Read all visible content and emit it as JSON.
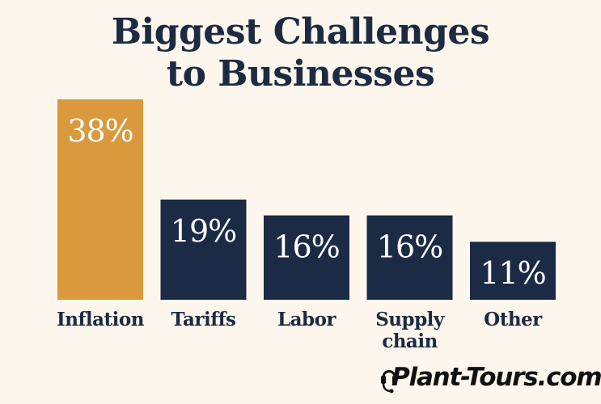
{
  "colors": {
    "background": "#fcf6ec",
    "title": "#1c2a42",
    "highlight_bar": "#d9993c",
    "bar": "#1c2b45",
    "bar_label": "#ffffff",
    "category_label": "#1c2a42",
    "brand": "#111111"
  },
  "brand": {
    "text": "Plant-Tours.com",
    "icon": "headset-icon"
  },
  "chart_data": {
    "type": "bar",
    "title_lines": [
      "Biggest Challenges",
      "to Businesses"
    ],
    "title": "Biggest Challenges to Businesses",
    "categories": [
      "Inflation",
      "Tariffs",
      "Labor",
      "Supply chain",
      "Other"
    ],
    "category_label_lines": [
      [
        "Inflation"
      ],
      [
        "Tariffs"
      ],
      [
        "Labor"
      ],
      [
        "Supply",
        "chain"
      ],
      [
        "Other"
      ]
    ],
    "values": [
      38,
      19,
      16,
      16,
      11
    ],
    "value_labels": [
      "38%",
      "19%",
      "16%",
      "16%",
      "11%"
    ],
    "unit": "%",
    "highlight_index": 0,
    "ylim": [
      0,
      38
    ],
    "grid": false,
    "legend": "none"
  }
}
